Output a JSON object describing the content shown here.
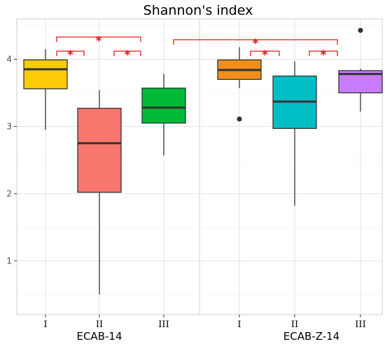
{
  "chart_data": {
    "type": "box",
    "title": "Shannon's index",
    "ylim": [
      0.2,
      4.6
    ],
    "y_ticks": [
      1,
      2,
      3,
      4
    ],
    "grid": true,
    "panels": [
      {
        "name": "ECAB-14",
        "boxes": [
          {
            "category": "I",
            "color": "#FBCB0A",
            "min": 2.95,
            "q1": 3.56,
            "median": 3.85,
            "q3": 3.99,
            "max": 4.15,
            "outliers": []
          },
          {
            "category": "II",
            "color": "#F8766D",
            "min": 0.5,
            "q1": 2.02,
            "median": 2.75,
            "q3": 3.27,
            "max": 3.54,
            "outliers": []
          },
          {
            "category": "III",
            "color": "#00BA38",
            "min": 2.57,
            "q1": 3.05,
            "median": 3.28,
            "q3": 3.57,
            "max": 3.78,
            "outliers": []
          }
        ]
      },
      {
        "name": "ECAB-Z-14",
        "boxes": [
          {
            "category": "I",
            "color": "#F28E1C",
            "min": 3.57,
            "q1": 3.7,
            "median": 3.84,
            "q3": 3.99,
            "max": 4.18,
            "outliers": [
              3.11
            ]
          },
          {
            "category": "II",
            "color": "#00BFC4",
            "min": 1.82,
            "q1": 2.97,
            "median": 3.37,
            "q3": 3.75,
            "max": 3.97,
            "outliers": []
          },
          {
            "category": "III",
            "color": "#C77CFF",
            "min": 3.22,
            "q1": 3.5,
            "median": 3.78,
            "q3": 3.83,
            "max": 3.86,
            "outliers": [
              4.43
            ]
          }
        ]
      }
    ],
    "significance": [
      {
        "panel": 0,
        "from": 0,
        "to": 2,
        "level": 4.33,
        "label": "*"
      },
      {
        "panel": 0,
        "from": 0,
        "to": 1,
        "level": 4.12,
        "label": "*"
      },
      {
        "panel": 0,
        "from": 1,
        "to": 2,
        "level": 4.12,
        "label": "*"
      },
      {
        "panel": "cross",
        "from": 2,
        "to": 2,
        "level": 4.29,
        "label": "*"
      },
      {
        "panel": 1,
        "from": 0,
        "to": 1,
        "level": 4.12,
        "label": "*"
      },
      {
        "panel": 1,
        "from": 1,
        "to": 2,
        "level": 4.12,
        "label": "*"
      }
    ],
    "bracket_color": "#e31a1c"
  }
}
